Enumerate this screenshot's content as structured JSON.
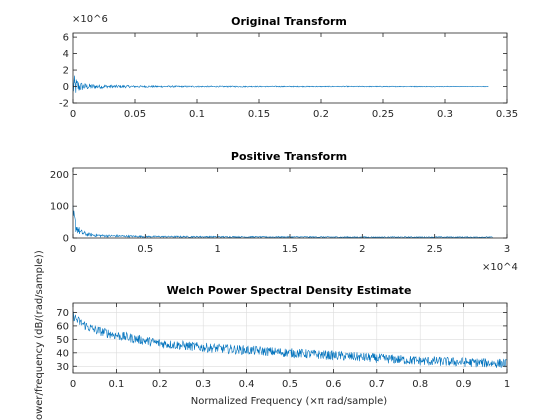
{
  "colors": {
    "line": "#0072bd",
    "axis": "#262626",
    "grid": "#dcdcdc"
  },
  "chart_data": [
    {
      "type": "line",
      "title": "Original Transform",
      "xlabel": "",
      "ylabel": "",
      "exponent_label": "×10^6",
      "xlim": [
        0,
        0.35
      ],
      "ylim": [
        -2,
        6.5
      ],
      "xticks": [
        "0",
        "0.05",
        "0.1",
        "0.15",
        "0.2",
        "0.25",
        "0.3",
        "0.35"
      ],
      "yticks": [
        "-2",
        "0",
        "2",
        "4",
        "6"
      ],
      "grid": false,
      "series": [
        {
          "x": [
            0,
            0.002,
            0.004,
            0.006,
            0.01,
            0.02,
            0.05,
            0.1,
            0.15,
            0.2,
            0.25,
            0.3,
            0.335
          ],
          "y": [
            1.5,
            1.2,
            0.9,
            0.6,
            0.4,
            0.25,
            0.12,
            0.08,
            0.06,
            0.05,
            0.05,
            0.04,
            0.03
          ]
        }
      ]
    },
    {
      "type": "line",
      "title": "Positive Transform",
      "xlabel": "",
      "ylabel": "",
      "exponent_label": "×10^4",
      "xlim": [
        0,
        3
      ],
      "ylim": [
        0,
        220
      ],
      "xticks": [
        "0",
        "0.5",
        "1",
        "1.5",
        "2",
        "2.5",
        "3"
      ],
      "yticks": [
        "0",
        "100",
        "200"
      ],
      "grid": false,
      "series": [
        {
          "x": [
            0,
            0.01,
            0.02,
            0.05,
            0.1,
            0.2,
            0.5,
            1,
            1.5,
            2,
            2.5,
            2.9
          ],
          "y": [
            75,
            60,
            40,
            20,
            12,
            8,
            5,
            4,
            3.5,
            3,
            3,
            3
          ]
        }
      ]
    },
    {
      "type": "line",
      "title": "Welch Power Spectral Density Estimate",
      "xlabel": "Normalized Frequency  (×π rad/sample)",
      "ylabel": "Power/frequency (dB/(rad/sample))",
      "xlim": [
        0,
        1
      ],
      "ylim": [
        25,
        77
      ],
      "xticks": [
        "0",
        "0.1",
        "0.2",
        "0.3",
        "0.4",
        "0.5",
        "0.6",
        "0.7",
        "0.8",
        "0.9",
        "1"
      ],
      "yticks": [
        "30",
        "40",
        "50",
        "60",
        "70"
      ],
      "grid": true,
      "series": [
        {
          "x": [
            0,
            0.01,
            0.03,
            0.05,
            0.1,
            0.15,
            0.2,
            0.3,
            0.4,
            0.5,
            0.6,
            0.7,
            0.8,
            0.9,
            1.0
          ],
          "y": [
            68,
            64,
            60,
            57,
            53,
            50,
            47,
            44,
            42,
            40,
            38,
            36,
            34,
            33,
            32
          ]
        }
      ]
    }
  ]
}
